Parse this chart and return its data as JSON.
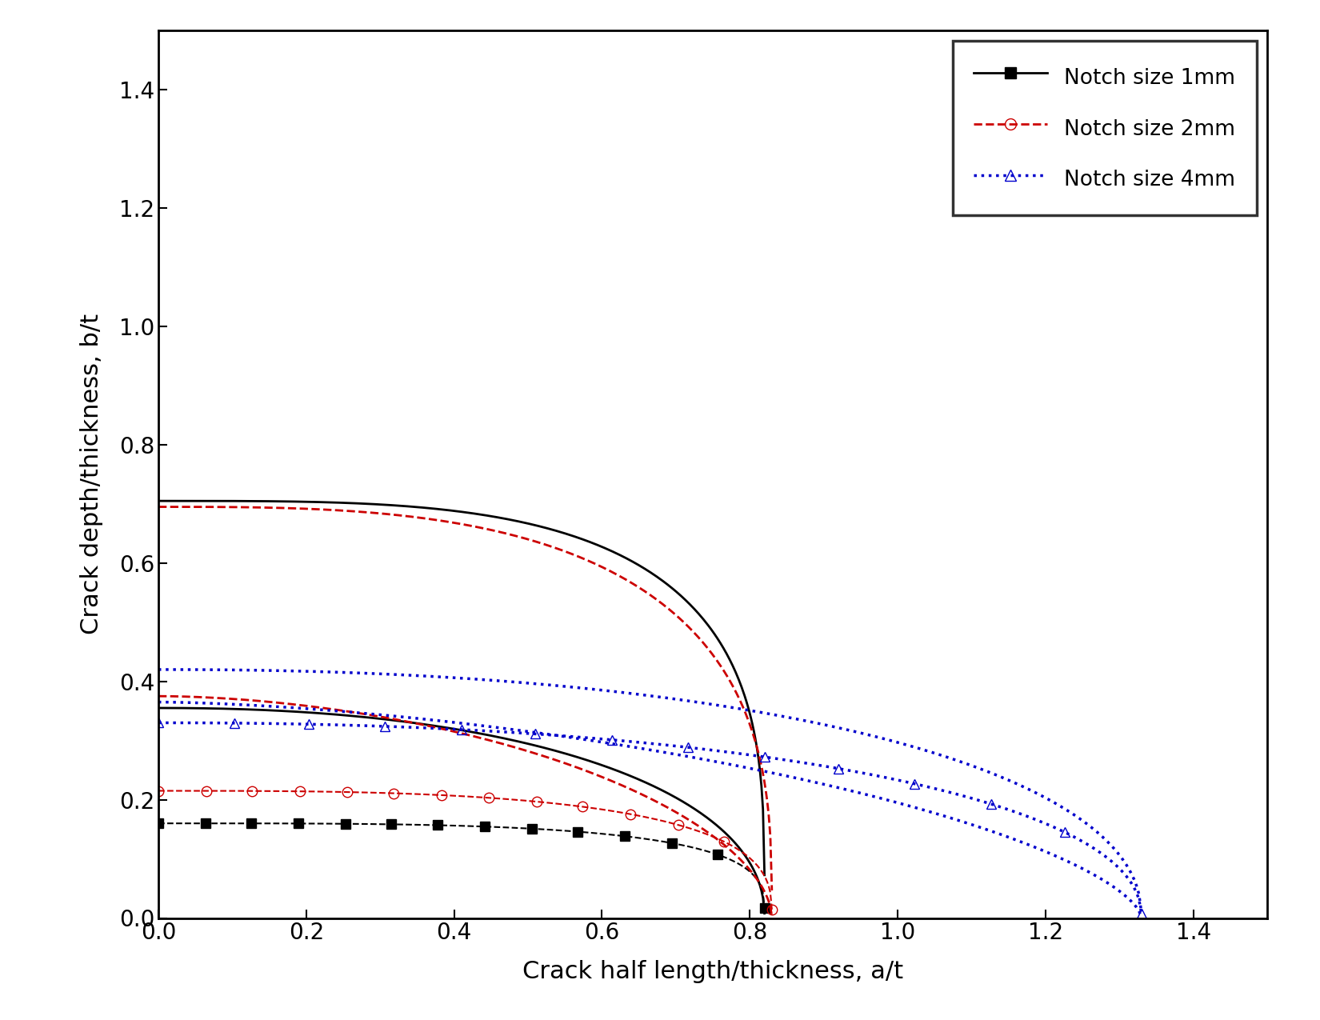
{
  "xlabel": "Crack half length/thickness, a/t",
  "ylabel": "Crack depth/thickness, b/t",
  "xlim": [
    0.0,
    1.5
  ],
  "ylim": [
    0.0,
    1.5
  ],
  "xticks": [
    0.0,
    0.2,
    0.4,
    0.6,
    0.8,
    1.0,
    1.2,
    1.4
  ],
  "yticks": [
    0.0,
    0.2,
    0.4,
    0.6,
    0.8,
    1.0,
    1.2,
    1.4
  ],
  "legend_labels": [
    "Notch size 1mm",
    "Notch size 2mm",
    "Notch size 4mm"
  ],
  "notch1": {
    "color": "#000000",
    "linestyle_upper": "-",
    "linestyle_lower": "--",
    "linewidth": 2.0,
    "marker": "s",
    "markersize": 9,
    "a_max": 0.82,
    "b_upper": 0.705,
    "b_mid": 0.355,
    "b_lower": 0.16,
    "power": 3.5
  },
  "notch2": {
    "color": "#cc0000",
    "linestyle_upper": "--",
    "linestyle_lower": "--",
    "linewidth": 2.0,
    "marker": "o",
    "markersize": 9,
    "a_max": 0.83,
    "b_upper": 0.695,
    "b_mid": 0.375,
    "b_lower": 0.215,
    "power": 3.0
  },
  "notch4": {
    "color": "#0000cc",
    "linestyle_upper": ":",
    "linestyle_lower": ":",
    "linewidth": 2.5,
    "marker": "^",
    "markersize": 9,
    "a_max": 1.33,
    "b_upper": 0.42,
    "b_mid": 0.365,
    "b_lower": 0.33,
    "power": 2.2
  }
}
